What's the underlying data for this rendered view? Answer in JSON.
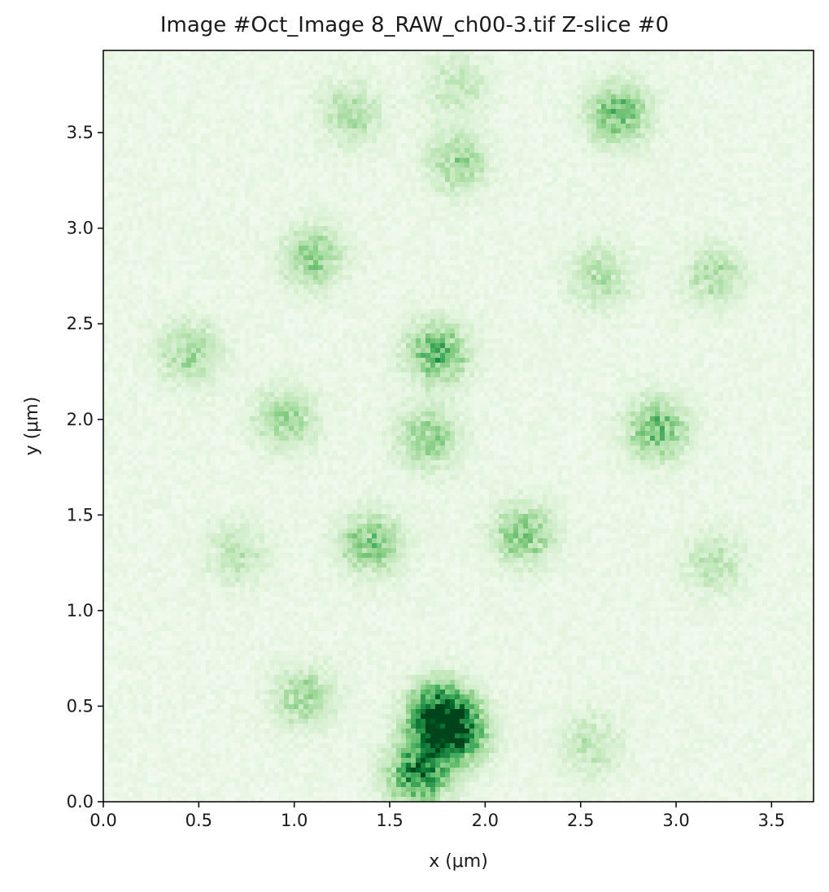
{
  "chart_data": {
    "type": "heatmap",
    "title": "Image #Oct_Image 8_RAW_ch00-3.tif Z-slice #0",
    "xlabel": "x (μm)",
    "ylabel": "y (μm)",
    "xlim": [
      0.0,
      3.72
    ],
    "ylim": [
      0.0,
      3.93
    ],
    "xticks": [
      "0.0",
      "0.5",
      "1.0",
      "1.5",
      "2.0",
      "2.5",
      "3.0",
      "3.5"
    ],
    "yticks": [
      "0.0",
      "0.5",
      "1.0",
      "1.5",
      "2.0",
      "2.5",
      "3.0",
      "3.5"
    ],
    "colormap": "Greens",
    "colorscale": [
      "#f7fcf5",
      "#e5f5e0",
      "#c7e9c0",
      "#a1d99b",
      "#74c476",
      "#41ab5d",
      "#238b45",
      "#006d2c",
      "#00441b"
    ],
    "grid": false,
    "blobs": [
      {
        "x": 1.77,
        "y": 0.45,
        "intensity": 0.95
      },
      {
        "x": 1.65,
        "y": 0.15,
        "intensity": 0.7
      },
      {
        "x": 1.85,
        "y": 0.35,
        "intensity": 0.6
      },
      {
        "x": 1.05,
        "y": 0.55,
        "intensity": 0.3
      },
      {
        "x": 2.55,
        "y": 0.3,
        "intensity": 0.2
      },
      {
        "x": 1.4,
        "y": 1.35,
        "intensity": 0.4
      },
      {
        "x": 2.2,
        "y": 1.4,
        "intensity": 0.4
      },
      {
        "x": 0.7,
        "y": 1.3,
        "intensity": 0.2
      },
      {
        "x": 3.2,
        "y": 1.25,
        "intensity": 0.2
      },
      {
        "x": 1.7,
        "y": 1.9,
        "intensity": 0.35
      },
      {
        "x": 0.95,
        "y": 2.0,
        "intensity": 0.3
      },
      {
        "x": 2.9,
        "y": 1.95,
        "intensity": 0.45
      },
      {
        "x": 1.75,
        "y": 2.35,
        "intensity": 0.5
      },
      {
        "x": 0.45,
        "y": 2.35,
        "intensity": 0.3
      },
      {
        "x": 1.1,
        "y": 2.85,
        "intensity": 0.35
      },
      {
        "x": 2.6,
        "y": 2.75,
        "intensity": 0.25
      },
      {
        "x": 3.2,
        "y": 2.75,
        "intensity": 0.25
      },
      {
        "x": 1.85,
        "y": 3.35,
        "intensity": 0.3
      },
      {
        "x": 2.7,
        "y": 3.6,
        "intensity": 0.45
      },
      {
        "x": 1.3,
        "y": 3.6,
        "intensity": 0.25
      },
      {
        "x": 1.85,
        "y": 3.75,
        "intensity": 0.2
      }
    ]
  }
}
